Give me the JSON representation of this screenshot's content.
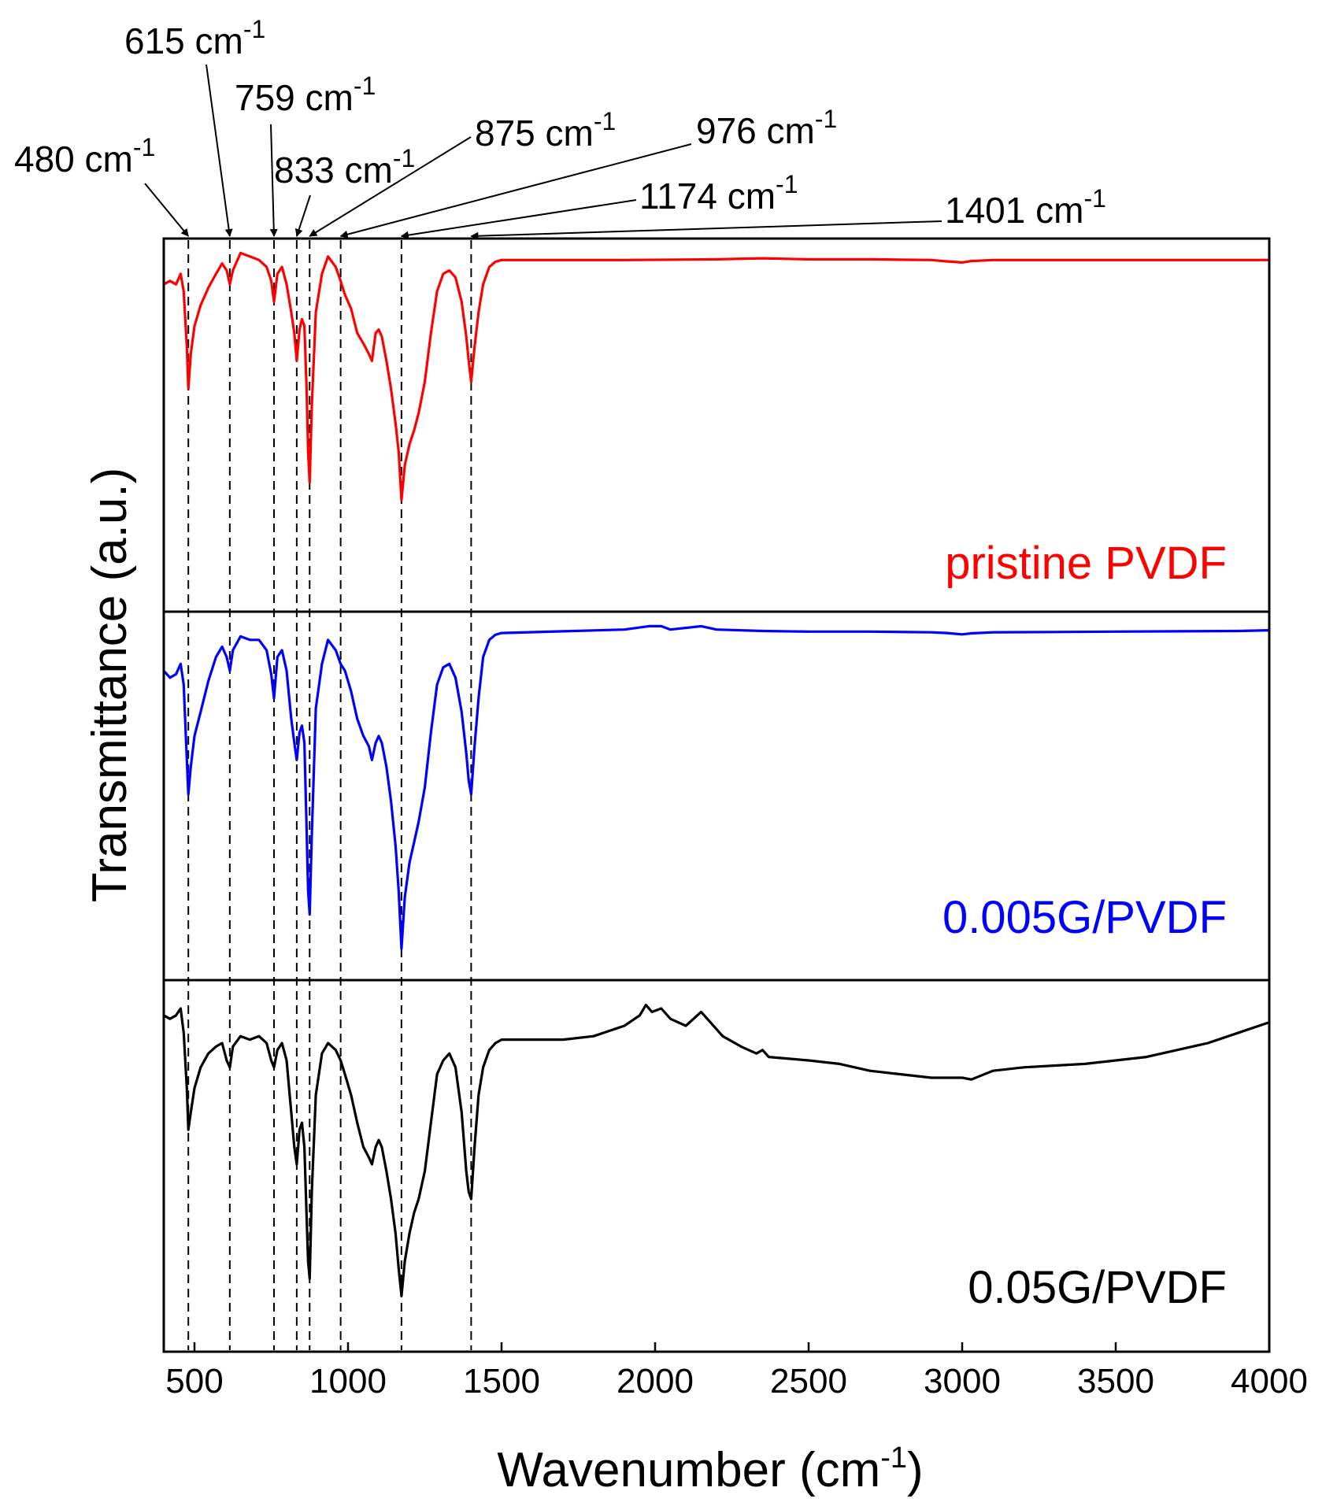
{
  "chart_data": {
    "type": "line",
    "title": "",
    "xlabel_main": "Wavenumber (cm",
    "xlabel_sup": "-1",
    "xlabel_close": ")",
    "ylabel": "Transmittance (a.u.)",
    "xlim": [
      400,
      4000
    ],
    "x_ticks": [
      500,
      1000,
      1500,
      2000,
      2500,
      3000,
      3500,
      4000
    ],
    "y_ticks_shown": false,
    "panels": [
      {
        "name": "pristine PVDF",
        "color": "#ff0000",
        "label": "pristine PVDF",
        "baseline": 0.97,
        "points": [
          [
            400,
            0.9
          ],
          [
            420,
            0.91
          ],
          [
            440,
            0.9
          ],
          [
            455,
            0.93
          ],
          [
            465,
            0.88
          ],
          [
            475,
            0.72
          ],
          [
            480,
            0.6
          ],
          [
            488,
            0.7
          ],
          [
            500,
            0.78
          ],
          [
            520,
            0.84
          ],
          [
            545,
            0.89
          ],
          [
            570,
            0.93
          ],
          [
            590,
            0.96
          ],
          [
            605,
            0.94
          ],
          [
            615,
            0.9
          ],
          [
            625,
            0.94
          ],
          [
            650,
            0.99
          ],
          [
            680,
            0.98
          ],
          [
            710,
            0.97
          ],
          [
            735,
            0.95
          ],
          [
            750,
            0.91
          ],
          [
            759,
            0.85
          ],
          [
            770,
            0.93
          ],
          [
            785,
            0.95
          ],
          [
            800,
            0.9
          ],
          [
            815,
            0.82
          ],
          [
            825,
            0.76
          ],
          [
            833,
            0.68
          ],
          [
            842,
            0.77
          ],
          [
            850,
            0.8
          ],
          [
            858,
            0.78
          ],
          [
            865,
            0.6
          ],
          [
            870,
            0.42
          ],
          [
            875,
            0.33
          ],
          [
            882,
            0.55
          ],
          [
            895,
            0.82
          ],
          [
            915,
            0.93
          ],
          [
            935,
            0.98
          ],
          [
            960,
            0.95
          ],
          [
            976,
            0.91
          ],
          [
            990,
            0.87
          ],
          [
            1010,
            0.83
          ],
          [
            1030,
            0.76
          ],
          [
            1050,
            0.73
          ],
          [
            1068,
            0.7
          ],
          [
            1078,
            0.68
          ],
          [
            1090,
            0.76
          ],
          [
            1100,
            0.77
          ],
          [
            1110,
            0.75
          ],
          [
            1125,
            0.68
          ],
          [
            1140,
            0.6
          ],
          [
            1155,
            0.5
          ],
          [
            1165,
            0.42
          ],
          [
            1174,
            0.28
          ],
          [
            1185,
            0.38
          ],
          [
            1200,
            0.44
          ],
          [
            1215,
            0.48
          ],
          [
            1230,
            0.53
          ],
          [
            1250,
            0.62
          ],
          [
            1270,
            0.76
          ],
          [
            1290,
            0.88
          ],
          [
            1310,
            0.93
          ],
          [
            1330,
            0.94
          ],
          [
            1350,
            0.92
          ],
          [
            1370,
            0.85
          ],
          [
            1385,
            0.75
          ],
          [
            1393,
            0.68
          ],
          [
            1401,
            0.62
          ],
          [
            1412,
            0.72
          ],
          [
            1425,
            0.82
          ],
          [
            1440,
            0.9
          ],
          [
            1460,
            0.95
          ],
          [
            1480,
            0.965
          ],
          [
            1500,
            0.97
          ],
          [
            1700,
            0.97
          ],
          [
            1900,
            0.97
          ],
          [
            2200,
            0.972
          ],
          [
            2350,
            0.975
          ],
          [
            2500,
            0.972
          ],
          [
            2700,
            0.972
          ],
          [
            2900,
            0.97
          ],
          [
            2950,
            0.966
          ],
          [
            3000,
            0.963
          ],
          [
            3030,
            0.967
          ],
          [
            3100,
            0.97
          ],
          [
            3300,
            0.97
          ],
          [
            3500,
            0.97
          ],
          [
            3700,
            0.97
          ],
          [
            3900,
            0.97
          ],
          [
            4000,
            0.97
          ]
        ]
      },
      {
        "name": "0.005G/PVDF",
        "color": "#0000ff",
        "label": "0.005G/PVDF",
        "baseline": 0.97,
        "points": [
          [
            400,
            0.86
          ],
          [
            420,
            0.84
          ],
          [
            440,
            0.85
          ],
          [
            455,
            0.88
          ],
          [
            465,
            0.82
          ],
          [
            475,
            0.6
          ],
          [
            480,
            0.5
          ],
          [
            488,
            0.58
          ],
          [
            500,
            0.67
          ],
          [
            520,
            0.74
          ],
          [
            545,
            0.83
          ],
          [
            570,
            0.9
          ],
          [
            590,
            0.93
          ],
          [
            605,
            0.9
          ],
          [
            615,
            0.86
          ],
          [
            625,
            0.92
          ],
          [
            650,
            0.96
          ],
          [
            680,
            0.95
          ],
          [
            710,
            0.95
          ],
          [
            735,
            0.92
          ],
          [
            750,
            0.85
          ],
          [
            759,
            0.78
          ],
          [
            770,
            0.9
          ],
          [
            785,
            0.92
          ],
          [
            800,
            0.86
          ],
          [
            815,
            0.72
          ],
          [
            825,
            0.65
          ],
          [
            833,
            0.6
          ],
          [
            842,
            0.68
          ],
          [
            850,
            0.7
          ],
          [
            858,
            0.65
          ],
          [
            865,
            0.4
          ],
          [
            870,
            0.22
          ],
          [
            875,
            0.15
          ],
          [
            882,
            0.38
          ],
          [
            895,
            0.75
          ],
          [
            915,
            0.88
          ],
          [
            935,
            0.95
          ],
          [
            960,
            0.92
          ],
          [
            976,
            0.88
          ],
          [
            990,
            0.86
          ],
          [
            1010,
            0.8
          ],
          [
            1030,
            0.72
          ],
          [
            1050,
            0.67
          ],
          [
            1068,
            0.64
          ],
          [
            1078,
            0.6
          ],
          [
            1090,
            0.65
          ],
          [
            1100,
            0.67
          ],
          [
            1110,
            0.65
          ],
          [
            1125,
            0.58
          ],
          [
            1140,
            0.48
          ],
          [
            1155,
            0.35
          ],
          [
            1165,
            0.22
          ],
          [
            1174,
            0.05
          ],
          [
            1185,
            0.2
          ],
          [
            1200,
            0.3
          ],
          [
            1215,
            0.36
          ],
          [
            1230,
            0.42
          ],
          [
            1250,
            0.52
          ],
          [
            1270,
            0.68
          ],
          [
            1290,
            0.82
          ],
          [
            1310,
            0.87
          ],
          [
            1330,
            0.88
          ],
          [
            1350,
            0.84
          ],
          [
            1370,
            0.74
          ],
          [
            1385,
            0.62
          ],
          [
            1393,
            0.54
          ],
          [
            1401,
            0.5
          ],
          [
            1412,
            0.64
          ],
          [
            1425,
            0.78
          ],
          [
            1440,
            0.9
          ],
          [
            1460,
            0.95
          ],
          [
            1480,
            0.965
          ],
          [
            1500,
            0.97
          ],
          [
            1700,
            0.975
          ],
          [
            1900,
            0.98
          ],
          [
            1980,
            0.99
          ],
          [
            2020,
            0.99
          ],
          [
            2050,
            0.98
          ],
          [
            2150,
            0.99
          ],
          [
            2200,
            0.98
          ],
          [
            2350,
            0.976
          ],
          [
            2500,
            0.974
          ],
          [
            2700,
            0.974
          ],
          [
            2900,
            0.972
          ],
          [
            2950,
            0.97
          ],
          [
            3000,
            0.966
          ],
          [
            3030,
            0.969
          ],
          [
            3100,
            0.972
          ],
          [
            3300,
            0.973
          ],
          [
            3500,
            0.974
          ],
          [
            3700,
            0.975
          ],
          [
            3900,
            0.976
          ],
          [
            4000,
            0.978
          ]
        ]
      },
      {
        "name": "0.05G/PVDF",
        "color": "#000000",
        "label": "0.05G/PVDF",
        "baseline": 0.8,
        "points": [
          [
            400,
            0.93
          ],
          [
            420,
            0.92
          ],
          [
            440,
            0.93
          ],
          [
            455,
            0.95
          ],
          [
            465,
            0.88
          ],
          [
            475,
            0.72
          ],
          [
            480,
            0.6
          ],
          [
            488,
            0.65
          ],
          [
            500,
            0.72
          ],
          [
            520,
            0.78
          ],
          [
            545,
            0.82
          ],
          [
            570,
            0.84
          ],
          [
            590,
            0.85
          ],
          [
            605,
            0.8
          ],
          [
            615,
            0.78
          ],
          [
            625,
            0.84
          ],
          [
            650,
            0.87
          ],
          [
            680,
            0.86
          ],
          [
            710,
            0.87
          ],
          [
            735,
            0.85
          ],
          [
            750,
            0.8
          ],
          [
            759,
            0.78
          ],
          [
            770,
            0.83
          ],
          [
            785,
            0.85
          ],
          [
            800,
            0.8
          ],
          [
            815,
            0.65
          ],
          [
            825,
            0.55
          ],
          [
            833,
            0.5
          ],
          [
            842,
            0.6
          ],
          [
            850,
            0.62
          ],
          [
            858,
            0.55
          ],
          [
            865,
            0.35
          ],
          [
            870,
            0.22
          ],
          [
            875,
            0.17
          ],
          [
            882,
            0.42
          ],
          [
            895,
            0.7
          ],
          [
            915,
            0.82
          ],
          [
            935,
            0.85
          ],
          [
            960,
            0.83
          ],
          [
            976,
            0.8
          ],
          [
            990,
            0.76
          ],
          [
            1010,
            0.7
          ],
          [
            1030,
            0.62
          ],
          [
            1050,
            0.55
          ],
          [
            1068,
            0.52
          ],
          [
            1078,
            0.5
          ],
          [
            1090,
            0.55
          ],
          [
            1100,
            0.57
          ],
          [
            1110,
            0.55
          ],
          [
            1125,
            0.48
          ],
          [
            1140,
            0.4
          ],
          [
            1155,
            0.3
          ],
          [
            1165,
            0.2
          ],
          [
            1174,
            0.12
          ],
          [
            1185,
            0.22
          ],
          [
            1200,
            0.3
          ],
          [
            1215,
            0.36
          ],
          [
            1230,
            0.4
          ],
          [
            1250,
            0.48
          ],
          [
            1270,
            0.62
          ],
          [
            1290,
            0.76
          ],
          [
            1310,
            0.8
          ],
          [
            1330,
            0.82
          ],
          [
            1350,
            0.78
          ],
          [
            1370,
            0.65
          ],
          [
            1385,
            0.48
          ],
          [
            1393,
            0.42
          ],
          [
            1401,
            0.4
          ],
          [
            1412,
            0.55
          ],
          [
            1425,
            0.7
          ],
          [
            1440,
            0.78
          ],
          [
            1460,
            0.83
          ],
          [
            1480,
            0.85
          ],
          [
            1500,
            0.86
          ],
          [
            1600,
            0.86
          ],
          [
            1700,
            0.86
          ],
          [
            1800,
            0.87
          ],
          [
            1900,
            0.9
          ],
          [
            1950,
            0.93
          ],
          [
            1970,
            0.96
          ],
          [
            1990,
            0.94
          ],
          [
            2020,
            0.95
          ],
          [
            2050,
            0.92
          ],
          [
            2100,
            0.9
          ],
          [
            2150,
            0.94
          ],
          [
            2180,
            0.91
          ],
          [
            2220,
            0.87
          ],
          [
            2280,
            0.84
          ],
          [
            2330,
            0.82
          ],
          [
            2350,
            0.83
          ],
          [
            2370,
            0.81
          ],
          [
            2500,
            0.8
          ],
          [
            2600,
            0.79
          ],
          [
            2700,
            0.77
          ],
          [
            2800,
            0.76
          ],
          [
            2900,
            0.75
          ],
          [
            3000,
            0.75
          ],
          [
            3030,
            0.745
          ],
          [
            3100,
            0.77
          ],
          [
            3200,
            0.78
          ],
          [
            3400,
            0.79
          ],
          [
            3600,
            0.81
          ],
          [
            3800,
            0.85
          ],
          [
            3900,
            0.88
          ],
          [
            4000,
            0.91
          ]
        ]
      }
    ],
    "peak_lines": [
      480,
      615,
      759,
      833,
      875,
      976,
      1174,
      1401
    ],
    "annotations": [
      {
        "text": "480 cm",
        "sup": "-1",
        "peak": 480
      },
      {
        "text": "615 cm",
        "sup": "-1",
        "peak": 615
      },
      {
        "text": "759 cm",
        "sup": "-1",
        "peak": 759
      },
      {
        "text": "833 cm",
        "sup": "-1",
        "peak": 833
      },
      {
        "text": "875 cm",
        "sup": "-1",
        "peak": 875
      },
      {
        "text": "976 cm",
        "sup": "-1",
        "peak": 976
      },
      {
        "text": "1174 cm",
        "sup": "-1",
        "peak": 1174
      },
      {
        "text": "1401 cm",
        "sup": "-1",
        "peak": 1401
      }
    ]
  }
}
